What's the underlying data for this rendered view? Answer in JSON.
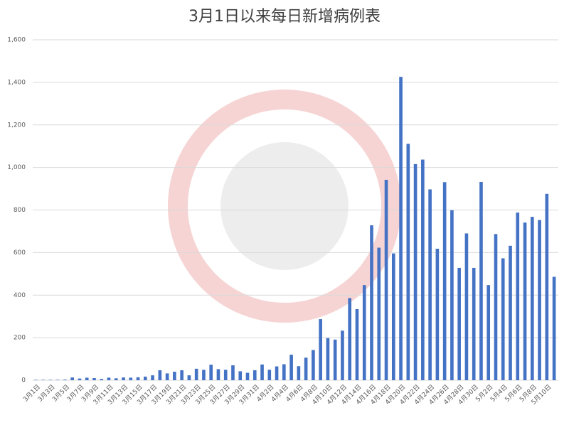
{
  "chart_data": {
    "type": "bar",
    "title": "3月1日以来每日新增病例表",
    "categories": [
      "3月1日",
      null,
      "3月3日",
      null,
      "3月5日",
      null,
      "3月7日",
      null,
      "3月9日",
      null,
      "3月11日",
      null,
      "3月13日",
      null,
      "3月15日",
      null,
      "3月17日",
      null,
      "3月19日",
      null,
      "3月21日",
      null,
      "3月23日",
      null,
      "3月25日",
      null,
      "3月27日",
      null,
      "3月29日",
      null,
      "3月31日",
      null,
      "4月2日",
      null,
      "4月4日",
      null,
      "4月6日",
      null,
      "4月8日",
      null,
      "4月10日",
      null,
      "4月12日",
      null,
      "4月14日",
      null,
      "4月16日",
      null,
      "4月18日",
      null,
      "4月20日",
      null,
      "4月22日",
      null,
      "4月24日",
      null,
      "4月26日",
      null,
      "4月28日",
      null,
      "4月30日",
      null,
      "5月2日",
      null,
      "5月4日",
      null,
      "5月6日",
      null,
      "5月8日",
      null,
      "5月10日",
      null
    ],
    "values": [
      2,
      2,
      2,
      2,
      3,
      13,
      8,
      12,
      10,
      6,
      12,
      9,
      13,
      12,
      14,
      17,
      23,
      47,
      32,
      40,
      47,
      23,
      54,
      49,
      73,
      52,
      49,
      70,
      42,
      35,
      47,
      74,
      49,
      65,
      75,
      120,
      66,
      106,
      142,
      287,
      198,
      191,
      233,
      386,
      334,
      447,
      728,
      623,
      942,
      596,
      1426,
      1111,
      1016,
      1037,
      897,
      618,
      931,
      799,
      528,
      690,
      528,
      932,
      447,
      687,
      573,
      632,
      788,
      741,
      768,
      753,
      876,
      486
    ],
    "color": "#4472c4",
    "ylim": [
      0,
      1600
    ],
    "yticks": [
      0,
      200,
      400,
      600,
      800,
      {
        "value": 1000,
        "label": "1,000"
      },
      {
        "value": 1200,
        "label": "1,200"
      },
      {
        "value": 1400,
        "label": "1,400"
      },
      {
        "value": 1600,
        "label": "1,600"
      }
    ],
    "grid": true
  }
}
